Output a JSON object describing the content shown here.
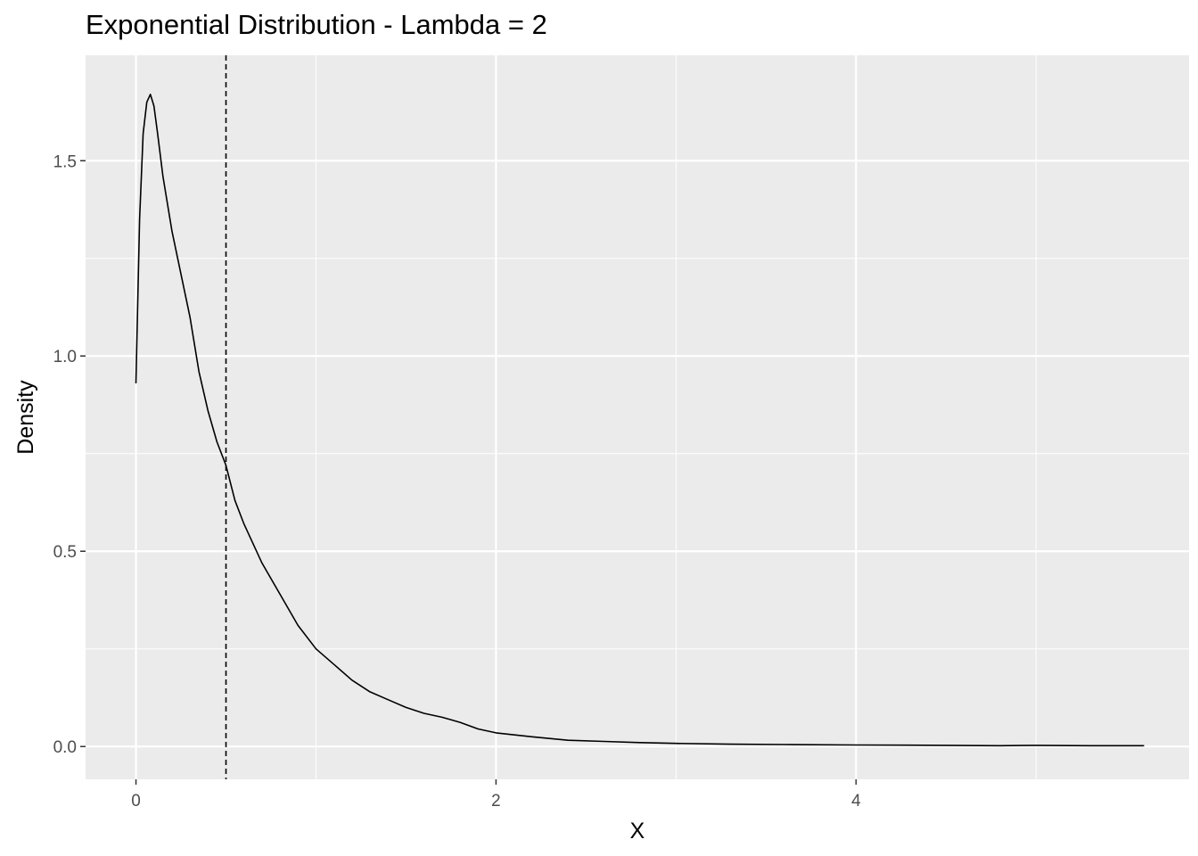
{
  "chart_data": {
    "type": "line",
    "title": "Exponential Distribution - Lambda = 2",
    "xlabel": "X",
    "ylabel": "Density",
    "xlim": [
      -0.28,
      5.85
    ],
    "ylim": [
      -0.084,
      1.77
    ],
    "x_ticks": [
      0,
      2,
      4
    ],
    "x_tick_labels": [
      "0",
      "2",
      "4"
    ],
    "x_minor_ticks": [
      1,
      3,
      5
    ],
    "y_ticks": [
      0.0,
      0.5,
      1.0,
      1.5
    ],
    "y_tick_labels": [
      "0.0",
      "0.5",
      "1.0",
      "1.5"
    ],
    "y_minor_ticks": [
      0.25,
      0.75,
      1.25
    ],
    "grid": true,
    "background": "#ebebeb",
    "grid_color": "#ffffff",
    "line_color": "#000000",
    "vline": {
      "x": 0.5,
      "style": "dashed"
    },
    "series": [
      {
        "x": [
          0.0,
          0.02,
          0.04,
          0.06,
          0.08,
          0.1,
          0.12,
          0.15,
          0.2,
          0.25,
          0.3,
          0.35,
          0.4,
          0.45,
          0.5,
          0.55,
          0.6,
          0.7,
          0.8,
          0.9,
          1.0,
          1.1,
          1.2,
          1.3,
          1.4,
          1.5,
          1.6,
          1.7,
          1.8,
          1.9,
          2.0,
          2.2,
          2.4,
          2.6,
          2.8,
          3.0,
          3.3,
          3.6,
          4.0,
          4.5,
          4.8,
          5.0,
          5.3,
          5.6
        ],
        "y": [
          0.93,
          1.35,
          1.57,
          1.65,
          1.67,
          1.64,
          1.57,
          1.46,
          1.32,
          1.21,
          1.1,
          0.96,
          0.86,
          0.78,
          0.72,
          0.63,
          0.57,
          0.47,
          0.39,
          0.31,
          0.25,
          0.21,
          0.17,
          0.14,
          0.12,
          0.1,
          0.085,
          0.075,
          0.062,
          0.045,
          0.035,
          0.025,
          0.016,
          0.013,
          0.01,
          0.008,
          0.006,
          0.005,
          0.004,
          0.003,
          0.002,
          0.003,
          0.002,
          0.002
        ]
      }
    ]
  }
}
